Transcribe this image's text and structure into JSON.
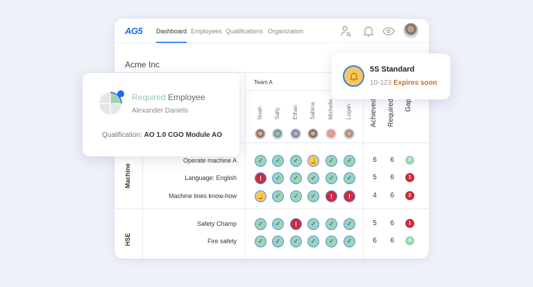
{
  "nav": {
    "logo": "AG5",
    "tabs": [
      "Dashboard",
      "Employees",
      "Qualifications",
      "Organization"
    ],
    "active_tab": "Dashboard",
    "icons": [
      "user-search-icon",
      "bell-icon",
      "eye-icon",
      "avatar"
    ]
  },
  "company": "Acme Inc",
  "team": "Team A",
  "employees": [
    "Noah",
    "Sally",
    "Ethan",
    "Sabina",
    "Michelle",
    "Logan"
  ],
  "stat_headers": [
    "Achieved",
    "Required",
    "Gap"
  ],
  "groups": [
    {
      "name": "Machine",
      "rows": [
        {
          "label": "Operate machine A",
          "cells": [
            "ok",
            "ok",
            "ok",
            "warn",
            "ok",
            "ok"
          ],
          "achieved": "6",
          "required": "6",
          "gap": "0"
        },
        {
          "label": "Language: English",
          "cells": [
            "err",
            "ok",
            "ok",
            "ok",
            "ok",
            "ok"
          ],
          "achieved": "5",
          "required": "6",
          "gap": "1"
        },
        {
          "label": "Machine lines know-how",
          "cells": [
            "warn",
            "ok",
            "ok",
            "ok",
            "err",
            "err"
          ],
          "achieved": "4",
          "required": "6",
          "gap": "2"
        }
      ]
    },
    {
      "name": "HSE",
      "rows": [
        {
          "label": "Safety Champ",
          "cells": [
            "ok",
            "ok",
            "err",
            "ok",
            "ok",
            "ok"
          ],
          "achieved": "5",
          "required": "6",
          "gap": "1"
        },
        {
          "label": "Fire safety",
          "cells": [
            "ok",
            "ok",
            "ok",
            "ok",
            "ok",
            "ok"
          ],
          "achieved": "6",
          "required": "6",
          "gap": "0"
        }
      ]
    }
  ],
  "popup_employee": {
    "required": "Required",
    "employee": "Employee",
    "name": "Alexander Daniels",
    "qual_label": "Qualification:",
    "qual_value": "AO 1.0 CGO Module AO"
  },
  "popup_standard": {
    "title": "5S Standard",
    "code": "10-123",
    "status": "Expires soon"
  },
  "colors": {
    "accent": "#3a86f3",
    "ok": "#9fd4b0",
    "warn": "#f7c75a",
    "error": "#d02a3c",
    "expires": "#c0702a"
  }
}
